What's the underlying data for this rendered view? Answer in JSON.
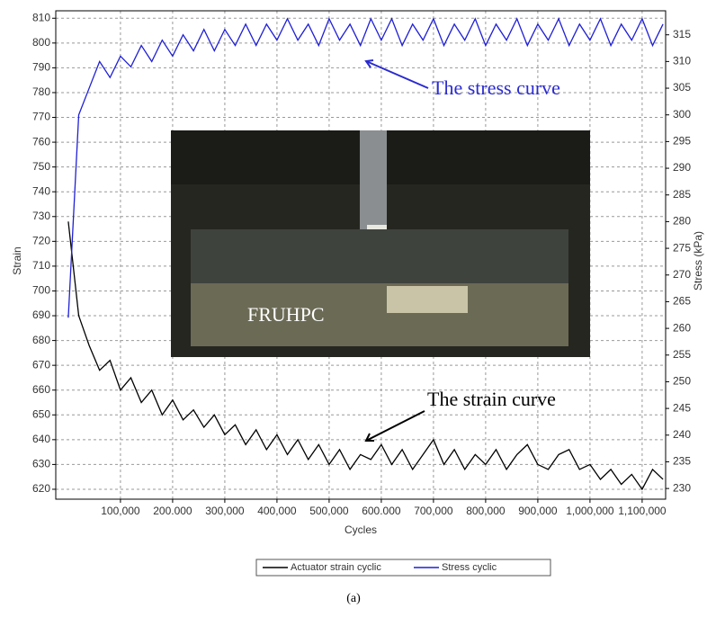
{
  "chart_data": {
    "type": "line",
    "x_label": "Cycles",
    "y_label": "Strain",
    "y2_label": "Stress (kPa)",
    "xlim": [
      -24000,
      1145000
    ],
    "ylim": [
      616,
      813
    ],
    "y2lim": [
      228,
      319.5
    ],
    "xticks": [
      {
        "value": 100000,
        "label": "100,000"
      },
      {
        "value": 200000,
        "label": "200.000"
      },
      {
        "value": 300000,
        "label": "300,000"
      },
      {
        "value": 400000,
        "label": "400,000"
      },
      {
        "value": 500000,
        "label": "500,000"
      },
      {
        "value": 600000,
        "label": "600.000"
      },
      {
        "value": 700000,
        "label": "700,000"
      },
      {
        "value": 800000,
        "label": "800,000"
      },
      {
        "value": 900000,
        "label": "900,000"
      },
      {
        "value": 1000000,
        "label": "1,000,000"
      },
      {
        "value": 1100000,
        "label": "1,100,000"
      }
    ],
    "yticks": [
      620,
      630,
      640,
      650,
      660,
      670,
      680,
      690,
      700,
      710,
      720,
      730,
      740,
      750,
      760,
      770,
      780,
      790,
      800,
      810
    ],
    "y2ticks": [
      230,
      235,
      240,
      245,
      250,
      255,
      260,
      265,
      270,
      275,
      280,
      285,
      290,
      295,
      300,
      305,
      310,
      315
    ],
    "grid": true,
    "x": [
      0,
      20000,
      40000,
      60000,
      80000,
      100000,
      120000,
      140000,
      160000,
      180000,
      200000,
      220000,
      240000,
      260000,
      280000,
      300000,
      320000,
      340000,
      360000,
      380000,
      400000,
      420000,
      440000,
      460000,
      480000,
      500000,
      520000,
      540000,
      560000,
      580000,
      600000,
      620000,
      640000,
      660000,
      680000,
      700000,
      720000,
      740000,
      760000,
      780000,
      800000,
      820000,
      840000,
      860000,
      880000,
      900000,
      920000,
      940000,
      960000,
      980000,
      1000000,
      1020000,
      1040000,
      1060000,
      1080000,
      1100000,
      1120000,
      1140000
    ],
    "series": [
      {
        "name": "Actuator strain cyclic",
        "color": "#000000",
        "axis": "y",
        "values": [
          728,
          690,
          678,
          668,
          672,
          660,
          665,
          655,
          660,
          650,
          656,
          648,
          652,
          645,
          650,
          642,
          646,
          638,
          644,
          636,
          642,
          634,
          640,
          632,
          638,
          630,
          636,
          628,
          634,
          632,
          638,
          630,
          636,
          628,
          634,
          640,
          630,
          636,
          628,
          634,
          630,
          636,
          628,
          634,
          638,
          630,
          628,
          634,
          636,
          628,
          630,
          624,
          628,
          622,
          626,
          620,
          628,
          624
        ]
      },
      {
        "name": "Stress cyclic",
        "color": "#1f1fd6",
        "axis": "y2",
        "values": [
          262,
          300,
          305,
          310,
          307,
          311,
          309,
          313,
          310,
          314,
          311,
          315,
          312,
          316,
          312,
          316,
          313,
          317,
          313,
          317,
          314,
          318,
          314,
          317,
          313,
          318,
          314,
          317,
          313,
          318,
          314,
          318,
          313,
          317,
          314,
          318,
          313,
          317,
          314,
          318,
          313,
          317,
          314,
          318,
          313,
          317,
          314,
          318,
          313,
          317,
          314,
          318,
          313,
          317,
          314,
          318,
          313,
          317
        ]
      }
    ],
    "annotations": [
      "The stress curve",
      "The strain curve"
    ],
    "inset_label": "FRUHPC",
    "caption": "(a)"
  }
}
